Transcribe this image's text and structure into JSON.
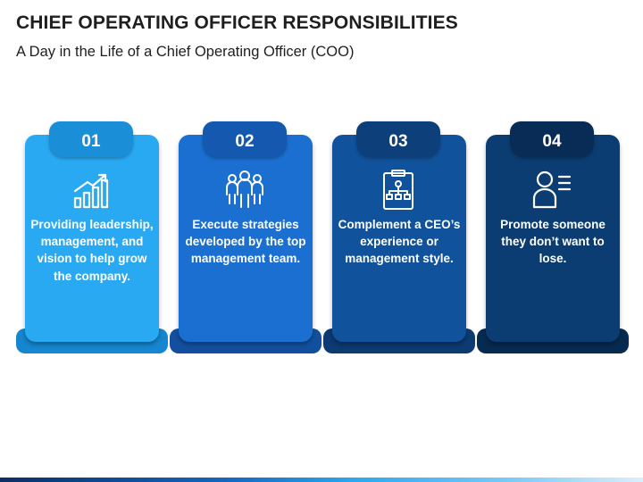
{
  "header": {
    "title": "CHIEF OPERATING OFFICER RESPONSIBILITIES",
    "subtitle": "A Day in the Life of a Chief Operating Officer (COO)"
  },
  "cards": [
    {
      "number": "01",
      "icon": "growth-chart-icon",
      "text": "Providing leadership, management, and vision to help grow the company."
    },
    {
      "number": "02",
      "icon": "team-group-icon",
      "text": "Execute strategies developed by the top management team."
    },
    {
      "number": "03",
      "icon": "clipboard-org-chart-icon",
      "text": "Complement a CEO’s experience or management style."
    },
    {
      "number": "04",
      "icon": "person-list-icon",
      "text": "Promote someone they don’t want to lose."
    }
  ],
  "colors": {
    "card1": "#2aa9f3",
    "card2": "#1a6fd1",
    "card3": "#11529c",
    "card4": "#0b3d72",
    "text": "#ffffff"
  }
}
